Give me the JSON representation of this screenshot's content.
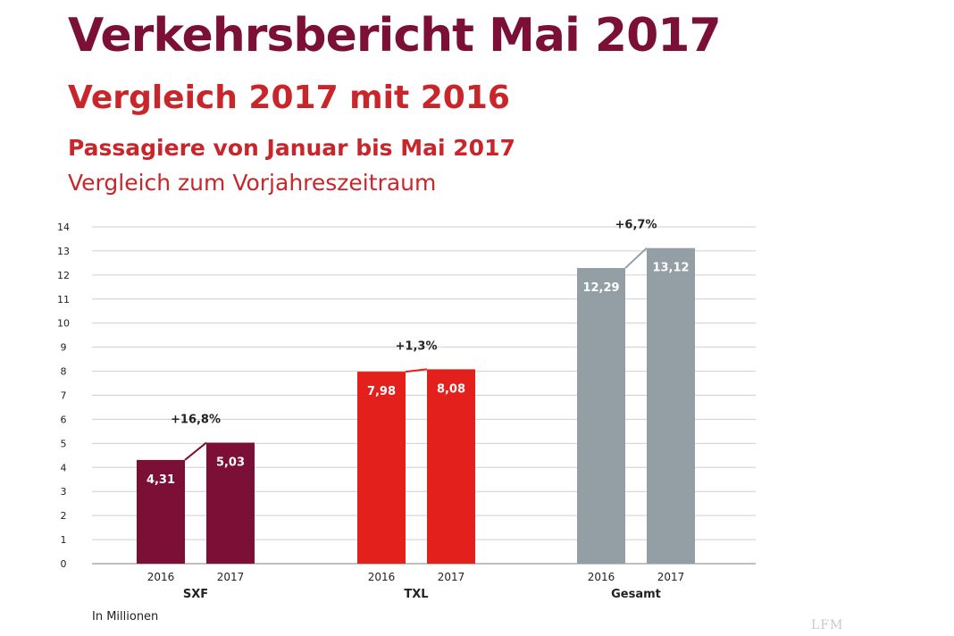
{
  "header": {
    "title": "Verkehrsbericht Mai 2017",
    "subtitle": "Vergleich 2017 mit 2016"
  },
  "chart_data": {
    "type": "bar",
    "title": "Passagiere von Januar bis Mai 2017",
    "subtitle": "Vergleich zum Vorjahreszeitraum",
    "ylabel": "",
    "xlabel": "",
    "ylim": [
      0,
      14
    ],
    "yticks": [
      0,
      1,
      2,
      3,
      4,
      5,
      6,
      7,
      8,
      9,
      10,
      11,
      12,
      13,
      14
    ],
    "grid": true,
    "groups": [
      {
        "name": "SXF",
        "color": "#7b0f35",
        "bars": [
          {
            "year": "2016",
            "value": 4.31,
            "label": "4,31"
          },
          {
            "year": "2017",
            "value": 5.03,
            "label": "5,03"
          }
        ],
        "change": "+16,8%"
      },
      {
        "name": "TXL",
        "color": "#e3201b",
        "bars": [
          {
            "year": "2016",
            "value": 7.98,
            "label": "7,98"
          },
          {
            "year": "2017",
            "value": 8.08,
            "label": "8,08"
          }
        ],
        "change": "+1,3%"
      },
      {
        "name": "Gesamt",
        "color": "#949ea5",
        "bars": [
          {
            "year": "2016",
            "value": 12.29,
            "label": "12,29"
          },
          {
            "year": "2017",
            "value": 13.12,
            "label": "13,12"
          }
        ],
        "change": "+6,7%"
      }
    ],
    "note": "In Millionen"
  },
  "watermark": "LFM"
}
